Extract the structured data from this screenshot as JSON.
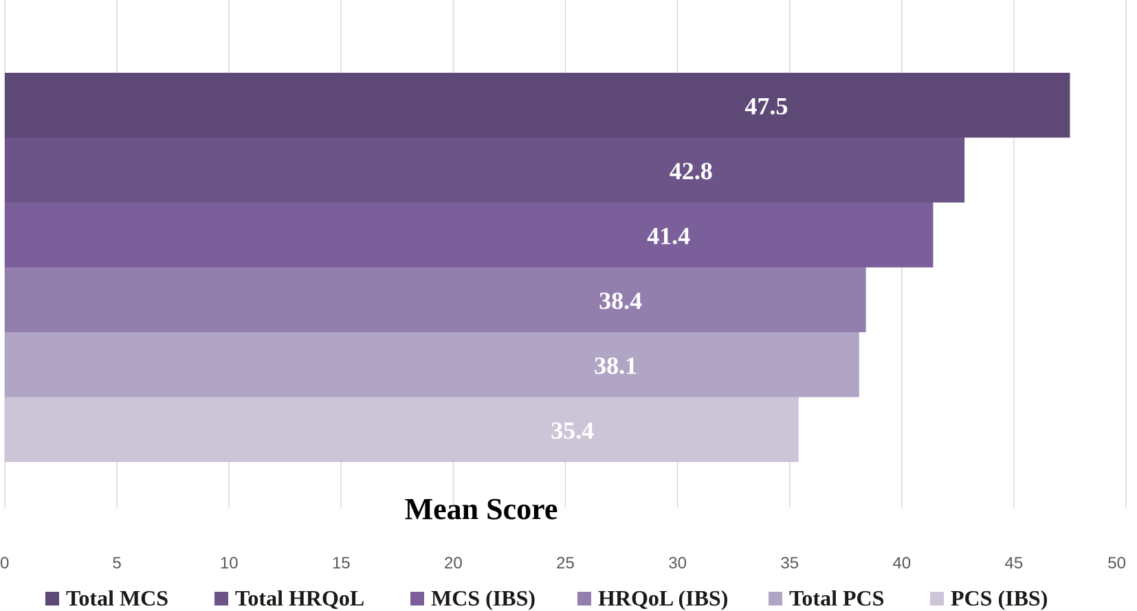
{
  "chart_data": {
    "type": "bar",
    "orientation": "horizontal",
    "xlabel": "Mean Score",
    "xlim": [
      0,
      50
    ],
    "xticks": [
      0,
      5,
      10,
      15,
      20,
      25,
      30,
      35,
      40,
      45,
      50
    ],
    "grid": "vertical",
    "legend_position": "bottom",
    "series": [
      {
        "name": "Total MCS",
        "value": 47.5,
        "label": "47.5",
        "color": "#5e4876"
      },
      {
        "name": "Total HRQoL",
        "value": 42.8,
        "label": "42.8",
        "color": "#6c5489"
      },
      {
        "name": "MCS (IBS)",
        "value": 41.4,
        "label": "41.4",
        "color": "#7b5f9a"
      },
      {
        "name": "HRQoL (IBS)",
        "value": 38.4,
        "label": "38.4",
        "color": "#937fae"
      },
      {
        "name": "Total PCS",
        "value": 38.1,
        "label": "38.1",
        "color": "#b0a5c4"
      },
      {
        "name": "PCS (IBS)",
        "value": 35.4,
        "label": "35.4",
        "color": "#ccc5d8"
      }
    ]
  }
}
